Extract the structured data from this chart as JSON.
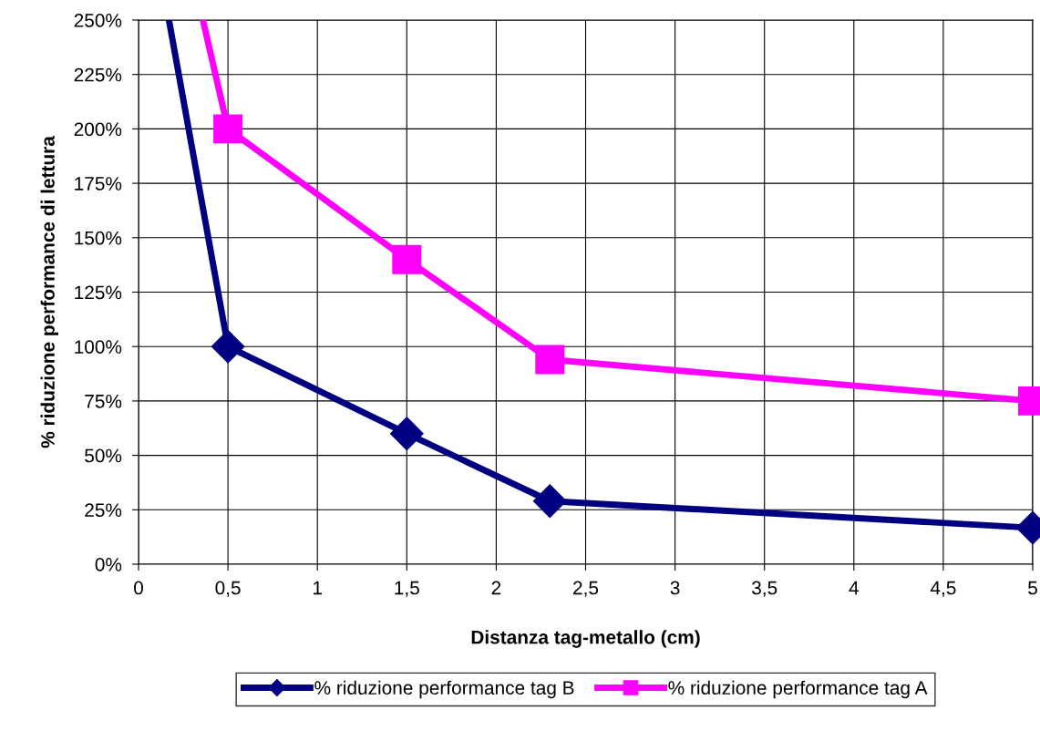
{
  "chart_data": {
    "type": "line",
    "xlabel": "Distanza tag-metallo (cm)",
    "ylabel": "% riduzione performance di lettura",
    "xlim": [
      0,
      5
    ],
    "ylim": [
      0,
      250
    ],
    "xticks": [
      0,
      {
        "value": 0.5,
        "label": "0,5"
      },
      1,
      {
        "value": 1.5,
        "label": "1,5"
      },
      2,
      {
        "value": 2.5,
        "label": "2,5"
      },
      3,
      {
        "value": 3.5,
        "label": "3,5"
      },
      4,
      {
        "value": 4.5,
        "label": "4,5"
      },
      5
    ],
    "yticks": [
      {
        "value": 0,
        "label": "0%"
      },
      {
        "value": 25,
        "label": "25%"
      },
      {
        "value": 50,
        "label": "50%"
      },
      {
        "value": 75,
        "label": "75%"
      },
      {
        "value": 100,
        "label": "100%"
      },
      {
        "value": 125,
        "label": "125%"
      },
      {
        "value": 150,
        "label": "150%"
      },
      {
        "value": 175,
        "label": "175%"
      },
      {
        "value": 200,
        "label": "200%"
      },
      {
        "value": 225,
        "label": "225%"
      },
      {
        "value": 250,
        "label": "250%"
      }
    ],
    "grid": true,
    "legend": "bottom",
    "series": [
      {
        "name": "% riduzione performance tag B",
        "color": "#000080",
        "marker": "diamond",
        "x": [
          0.17,
          0.5,
          1.5,
          2.3,
          5
        ],
        "values": [
          250,
          100,
          60,
          29,
          16.7
        ]
      },
      {
        "name": "% riduzione performance tag A",
        "color": "#ff00ff",
        "marker": "square",
        "x": [
          0.36,
          0.5,
          1.5,
          2.3,
          5
        ],
        "values": [
          250,
          200,
          140,
          94,
          75
        ]
      }
    ]
  }
}
